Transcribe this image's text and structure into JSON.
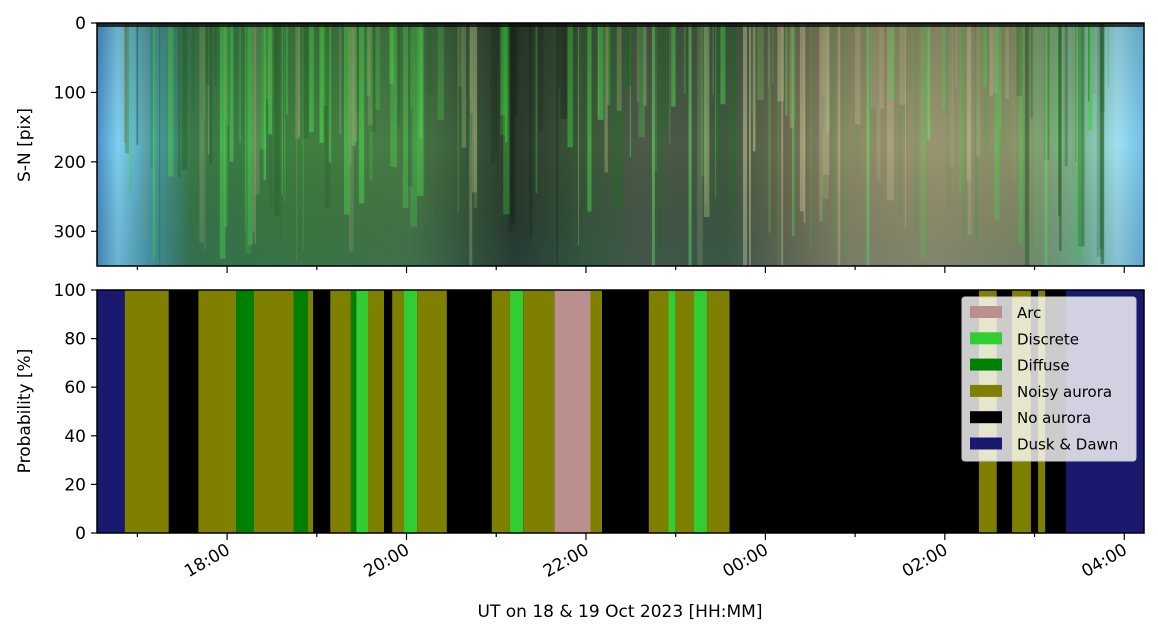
{
  "chart_data": [
    {
      "type": "heatmap",
      "title": "",
      "xlabel": "",
      "ylabel": "S-N [pix]",
      "ylim": [
        350,
        0
      ],
      "yticks": [
        "0",
        "100",
        "200",
        "300"
      ],
      "xlim_hours": [
        16.55,
        28.22
      ],
      "colors": {
        "sky_edge": "#7fd0f0",
        "dark": "#1f2a22",
        "green": "#3fa83f",
        "bright_green": "#55e055",
        "tan": "#a09a70"
      }
    },
    {
      "type": "area",
      "title": "",
      "xlabel": "UT on 18 & 19 Oct 2023 [HH:MM]",
      "ylabel": "Probability [%]",
      "ylim": [
        0,
        100
      ],
      "yticks": [
        "0",
        "20",
        "40",
        "60",
        "80",
        "100"
      ],
      "xlim_hours": [
        16.55,
        28.22
      ],
      "xticks": [
        {
          "label": "18:00",
          "hour": 18
        },
        {
          "label": "20:00",
          "hour": 20
        },
        {
          "label": "22:00",
          "hour": 22
        },
        {
          "label": "00:00",
          "hour": 24
        },
        {
          "label": "02:00",
          "hour": 26
        },
        {
          "label": "04:00",
          "hour": 28
        }
      ],
      "legend_position": "top-right",
      "series": [
        {
          "name": "Arc",
          "color": "#bc8f8f"
        },
        {
          "name": "Discrete",
          "color": "#32cd32"
        },
        {
          "name": "Diffuse",
          "color": "#008000"
        },
        {
          "name": "Noisy aurora",
          "color": "#808000"
        },
        {
          "name": "No aurora",
          "color": "#000000"
        },
        {
          "name": "Dusk & Dawn",
          "color": "#191970"
        }
      ],
      "segments": [
        {
          "start": 16.55,
          "end": 16.86,
          "class": "Dusk & Dawn"
        },
        {
          "start": 16.86,
          "end": 17.35,
          "class": "Noisy aurora"
        },
        {
          "start": 17.35,
          "end": 17.68,
          "class": "No aurora"
        },
        {
          "start": 17.68,
          "end": 18.1,
          "class": "Noisy aurora"
        },
        {
          "start": 18.1,
          "end": 18.3,
          "class": "Diffuse"
        },
        {
          "start": 18.3,
          "end": 18.74,
          "class": "Noisy aurora"
        },
        {
          "start": 18.74,
          "end": 18.9,
          "class": "Diffuse"
        },
        {
          "start": 18.9,
          "end": 18.96,
          "class": "Noisy aurora"
        },
        {
          "start": 18.96,
          "end": 19.15,
          "class": "No aurora"
        },
        {
          "start": 19.15,
          "end": 19.38,
          "class": "Noisy aurora"
        },
        {
          "start": 19.38,
          "end": 19.44,
          "class": "Diffuse"
        },
        {
          "start": 19.44,
          "end": 19.57,
          "class": "Discrete"
        },
        {
          "start": 19.57,
          "end": 19.75,
          "class": "Noisy aurora"
        },
        {
          "start": 19.75,
          "end": 19.84,
          "class": "No aurora"
        },
        {
          "start": 19.84,
          "end": 19.97,
          "class": "Noisy aurora"
        },
        {
          "start": 19.97,
          "end": 20.12,
          "class": "Discrete"
        },
        {
          "start": 20.12,
          "end": 20.45,
          "class": "Noisy aurora"
        },
        {
          "start": 20.45,
          "end": 20.95,
          "class": "No aurora"
        },
        {
          "start": 20.95,
          "end": 21.15,
          "class": "Noisy aurora"
        },
        {
          "start": 21.15,
          "end": 21.3,
          "class": "Discrete"
        },
        {
          "start": 21.3,
          "end": 21.65,
          "class": "Noisy aurora"
        },
        {
          "start": 21.65,
          "end": 22.05,
          "class": "Arc"
        },
        {
          "start": 22.05,
          "end": 22.18,
          "class": "Noisy aurora"
        },
        {
          "start": 22.18,
          "end": 22.7,
          "class": "No aurora"
        },
        {
          "start": 22.7,
          "end": 22.92,
          "class": "Noisy aurora"
        },
        {
          "start": 22.92,
          "end": 23.0,
          "class": "Discrete"
        },
        {
          "start": 23.0,
          "end": 23.2,
          "class": "Noisy aurora"
        },
        {
          "start": 23.2,
          "end": 23.35,
          "class": "Discrete"
        },
        {
          "start": 23.35,
          "end": 23.6,
          "class": "Noisy aurora"
        },
        {
          "start": 23.6,
          "end": 26.38,
          "class": "No aurora"
        },
        {
          "start": 26.38,
          "end": 26.58,
          "class": "Noisy aurora"
        },
        {
          "start": 26.58,
          "end": 26.75,
          "class": "No aurora"
        },
        {
          "start": 26.75,
          "end": 26.96,
          "class": "Noisy aurora"
        },
        {
          "start": 26.96,
          "end": 27.04,
          "class": "No aurora"
        },
        {
          "start": 27.04,
          "end": 27.12,
          "class": "Noisy aurora"
        },
        {
          "start": 27.12,
          "end": 27.35,
          "class": "No aurora"
        },
        {
          "start": 27.35,
          "end": 28.22,
          "class": "Dusk & Dawn"
        }
      ]
    }
  ]
}
